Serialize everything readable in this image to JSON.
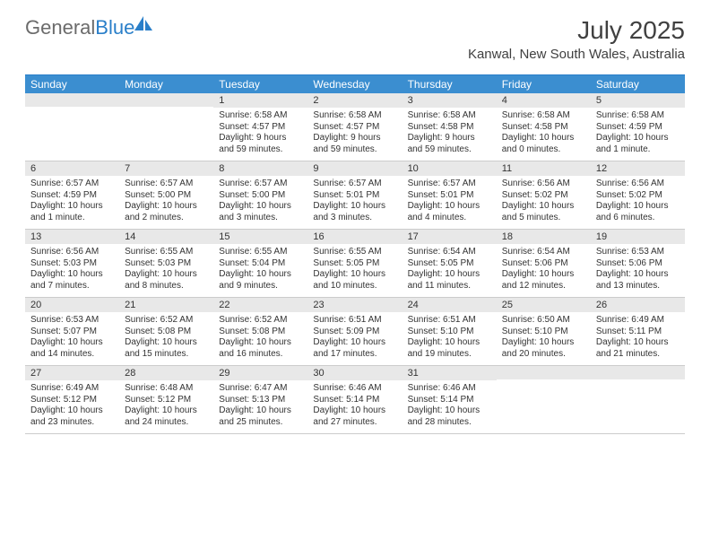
{
  "brand": {
    "general": "General",
    "blue": "Blue"
  },
  "title": "July 2025",
  "location": "Kanwal, New South Wales, Australia",
  "style": {
    "accent": "#3b8ed0",
    "border_top": "#2a7fc9",
    "daybar_bg": "#e8e8e8",
    "text": "#333333",
    "title_color": "#404040",
    "body_fontsize": 10,
    "head_fontsize": 12,
    "title_fontsize": 28
  },
  "day_headers": [
    "Sunday",
    "Monday",
    "Tuesday",
    "Wednesday",
    "Thursday",
    "Friday",
    "Saturday"
  ],
  "weeks": [
    [
      {
        "n": "",
        "sr": "",
        "ss": "",
        "dl": ""
      },
      {
        "n": "",
        "sr": "",
        "ss": "",
        "dl": ""
      },
      {
        "n": "1",
        "sr": "Sunrise: 6:58 AM",
        "ss": "Sunset: 4:57 PM",
        "dl": "Daylight: 9 hours and 59 minutes."
      },
      {
        "n": "2",
        "sr": "Sunrise: 6:58 AM",
        "ss": "Sunset: 4:57 PM",
        "dl": "Daylight: 9 hours and 59 minutes."
      },
      {
        "n": "3",
        "sr": "Sunrise: 6:58 AM",
        "ss": "Sunset: 4:58 PM",
        "dl": "Daylight: 9 hours and 59 minutes."
      },
      {
        "n": "4",
        "sr": "Sunrise: 6:58 AM",
        "ss": "Sunset: 4:58 PM",
        "dl": "Daylight: 10 hours and 0 minutes."
      },
      {
        "n": "5",
        "sr": "Sunrise: 6:58 AM",
        "ss": "Sunset: 4:59 PM",
        "dl": "Daylight: 10 hours and 1 minute."
      }
    ],
    [
      {
        "n": "6",
        "sr": "Sunrise: 6:57 AM",
        "ss": "Sunset: 4:59 PM",
        "dl": "Daylight: 10 hours and 1 minute."
      },
      {
        "n": "7",
        "sr": "Sunrise: 6:57 AM",
        "ss": "Sunset: 5:00 PM",
        "dl": "Daylight: 10 hours and 2 minutes."
      },
      {
        "n": "8",
        "sr": "Sunrise: 6:57 AM",
        "ss": "Sunset: 5:00 PM",
        "dl": "Daylight: 10 hours and 3 minutes."
      },
      {
        "n": "9",
        "sr": "Sunrise: 6:57 AM",
        "ss": "Sunset: 5:01 PM",
        "dl": "Daylight: 10 hours and 3 minutes."
      },
      {
        "n": "10",
        "sr": "Sunrise: 6:57 AM",
        "ss": "Sunset: 5:01 PM",
        "dl": "Daylight: 10 hours and 4 minutes."
      },
      {
        "n": "11",
        "sr": "Sunrise: 6:56 AM",
        "ss": "Sunset: 5:02 PM",
        "dl": "Daylight: 10 hours and 5 minutes."
      },
      {
        "n": "12",
        "sr": "Sunrise: 6:56 AM",
        "ss": "Sunset: 5:02 PM",
        "dl": "Daylight: 10 hours and 6 minutes."
      }
    ],
    [
      {
        "n": "13",
        "sr": "Sunrise: 6:56 AM",
        "ss": "Sunset: 5:03 PM",
        "dl": "Daylight: 10 hours and 7 minutes."
      },
      {
        "n": "14",
        "sr": "Sunrise: 6:55 AM",
        "ss": "Sunset: 5:03 PM",
        "dl": "Daylight: 10 hours and 8 minutes."
      },
      {
        "n": "15",
        "sr": "Sunrise: 6:55 AM",
        "ss": "Sunset: 5:04 PM",
        "dl": "Daylight: 10 hours and 9 minutes."
      },
      {
        "n": "16",
        "sr": "Sunrise: 6:55 AM",
        "ss": "Sunset: 5:05 PM",
        "dl": "Daylight: 10 hours and 10 minutes."
      },
      {
        "n": "17",
        "sr": "Sunrise: 6:54 AM",
        "ss": "Sunset: 5:05 PM",
        "dl": "Daylight: 10 hours and 11 minutes."
      },
      {
        "n": "18",
        "sr": "Sunrise: 6:54 AM",
        "ss": "Sunset: 5:06 PM",
        "dl": "Daylight: 10 hours and 12 minutes."
      },
      {
        "n": "19",
        "sr": "Sunrise: 6:53 AM",
        "ss": "Sunset: 5:06 PM",
        "dl": "Daylight: 10 hours and 13 minutes."
      }
    ],
    [
      {
        "n": "20",
        "sr": "Sunrise: 6:53 AM",
        "ss": "Sunset: 5:07 PM",
        "dl": "Daylight: 10 hours and 14 minutes."
      },
      {
        "n": "21",
        "sr": "Sunrise: 6:52 AM",
        "ss": "Sunset: 5:08 PM",
        "dl": "Daylight: 10 hours and 15 minutes."
      },
      {
        "n": "22",
        "sr": "Sunrise: 6:52 AM",
        "ss": "Sunset: 5:08 PM",
        "dl": "Daylight: 10 hours and 16 minutes."
      },
      {
        "n": "23",
        "sr": "Sunrise: 6:51 AM",
        "ss": "Sunset: 5:09 PM",
        "dl": "Daylight: 10 hours and 17 minutes."
      },
      {
        "n": "24",
        "sr": "Sunrise: 6:51 AM",
        "ss": "Sunset: 5:10 PM",
        "dl": "Daylight: 10 hours and 19 minutes."
      },
      {
        "n": "25",
        "sr": "Sunrise: 6:50 AM",
        "ss": "Sunset: 5:10 PM",
        "dl": "Daylight: 10 hours and 20 minutes."
      },
      {
        "n": "26",
        "sr": "Sunrise: 6:49 AM",
        "ss": "Sunset: 5:11 PM",
        "dl": "Daylight: 10 hours and 21 minutes."
      }
    ],
    [
      {
        "n": "27",
        "sr": "Sunrise: 6:49 AM",
        "ss": "Sunset: 5:12 PM",
        "dl": "Daylight: 10 hours and 23 minutes."
      },
      {
        "n": "28",
        "sr": "Sunrise: 6:48 AM",
        "ss": "Sunset: 5:12 PM",
        "dl": "Daylight: 10 hours and 24 minutes."
      },
      {
        "n": "29",
        "sr": "Sunrise: 6:47 AM",
        "ss": "Sunset: 5:13 PM",
        "dl": "Daylight: 10 hours and 25 minutes."
      },
      {
        "n": "30",
        "sr": "Sunrise: 6:46 AM",
        "ss": "Sunset: 5:14 PM",
        "dl": "Daylight: 10 hours and 27 minutes."
      },
      {
        "n": "31",
        "sr": "Sunrise: 6:46 AM",
        "ss": "Sunset: 5:14 PM",
        "dl": "Daylight: 10 hours and 28 minutes."
      },
      {
        "n": "",
        "sr": "",
        "ss": "",
        "dl": ""
      },
      {
        "n": "",
        "sr": "",
        "ss": "",
        "dl": ""
      }
    ]
  ]
}
